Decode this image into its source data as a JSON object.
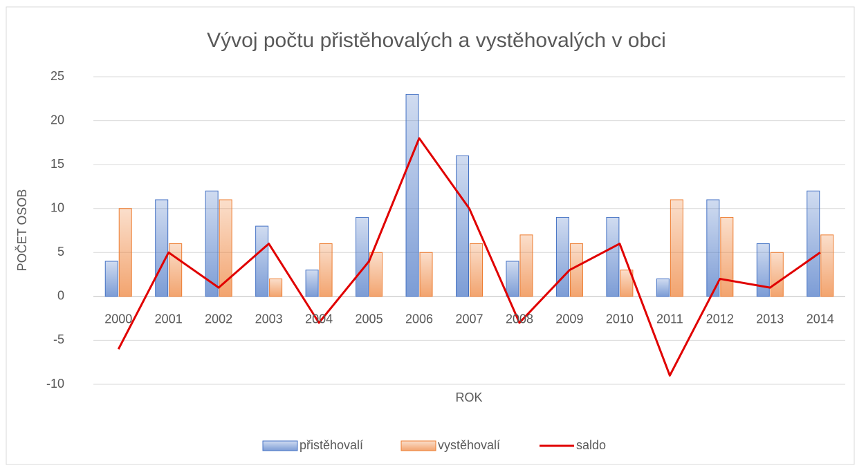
{
  "chart_data": {
    "type": "bar",
    "title": "Vývoj počtu přistěhovalých a vystěhovalých v obci",
    "x_label": "ROK",
    "y_label": "POČET OSOB",
    "categories": [
      "2000",
      "2001",
      "2002",
      "2003",
      "2004",
      "2005",
      "2006",
      "2007",
      "2008",
      "2009",
      "2010",
      "2011",
      "2012",
      "2013",
      "2014"
    ],
    "series": [
      {
        "name": "přistěhovalí",
        "type": "bar",
        "color": "#4472c4",
        "values": [
          4,
          11,
          12,
          8,
          3,
          9,
          23,
          16,
          4,
          9,
          9,
          2,
          11,
          6,
          12
        ]
      },
      {
        "name": "vystěhovalí",
        "type": "bar",
        "color": "#ed7d31",
        "values": [
          10,
          6,
          11,
          2,
          6,
          5,
          5,
          6,
          7,
          6,
          3,
          11,
          9,
          5,
          7
        ]
      },
      {
        "name": "saldo",
        "type": "line",
        "color": "#e00000",
        "values": [
          -6,
          5,
          1,
          6,
          -3,
          4,
          18,
          10,
          -3,
          3,
          6,
          -9,
          2,
          1,
          5
        ]
      }
    ],
    "ylim": [
      -10,
      25
    ],
    "yticks": [
      -10,
      -5,
      0,
      5,
      10,
      15,
      20,
      25
    ],
    "grid": true,
    "legend": "bottom"
  }
}
